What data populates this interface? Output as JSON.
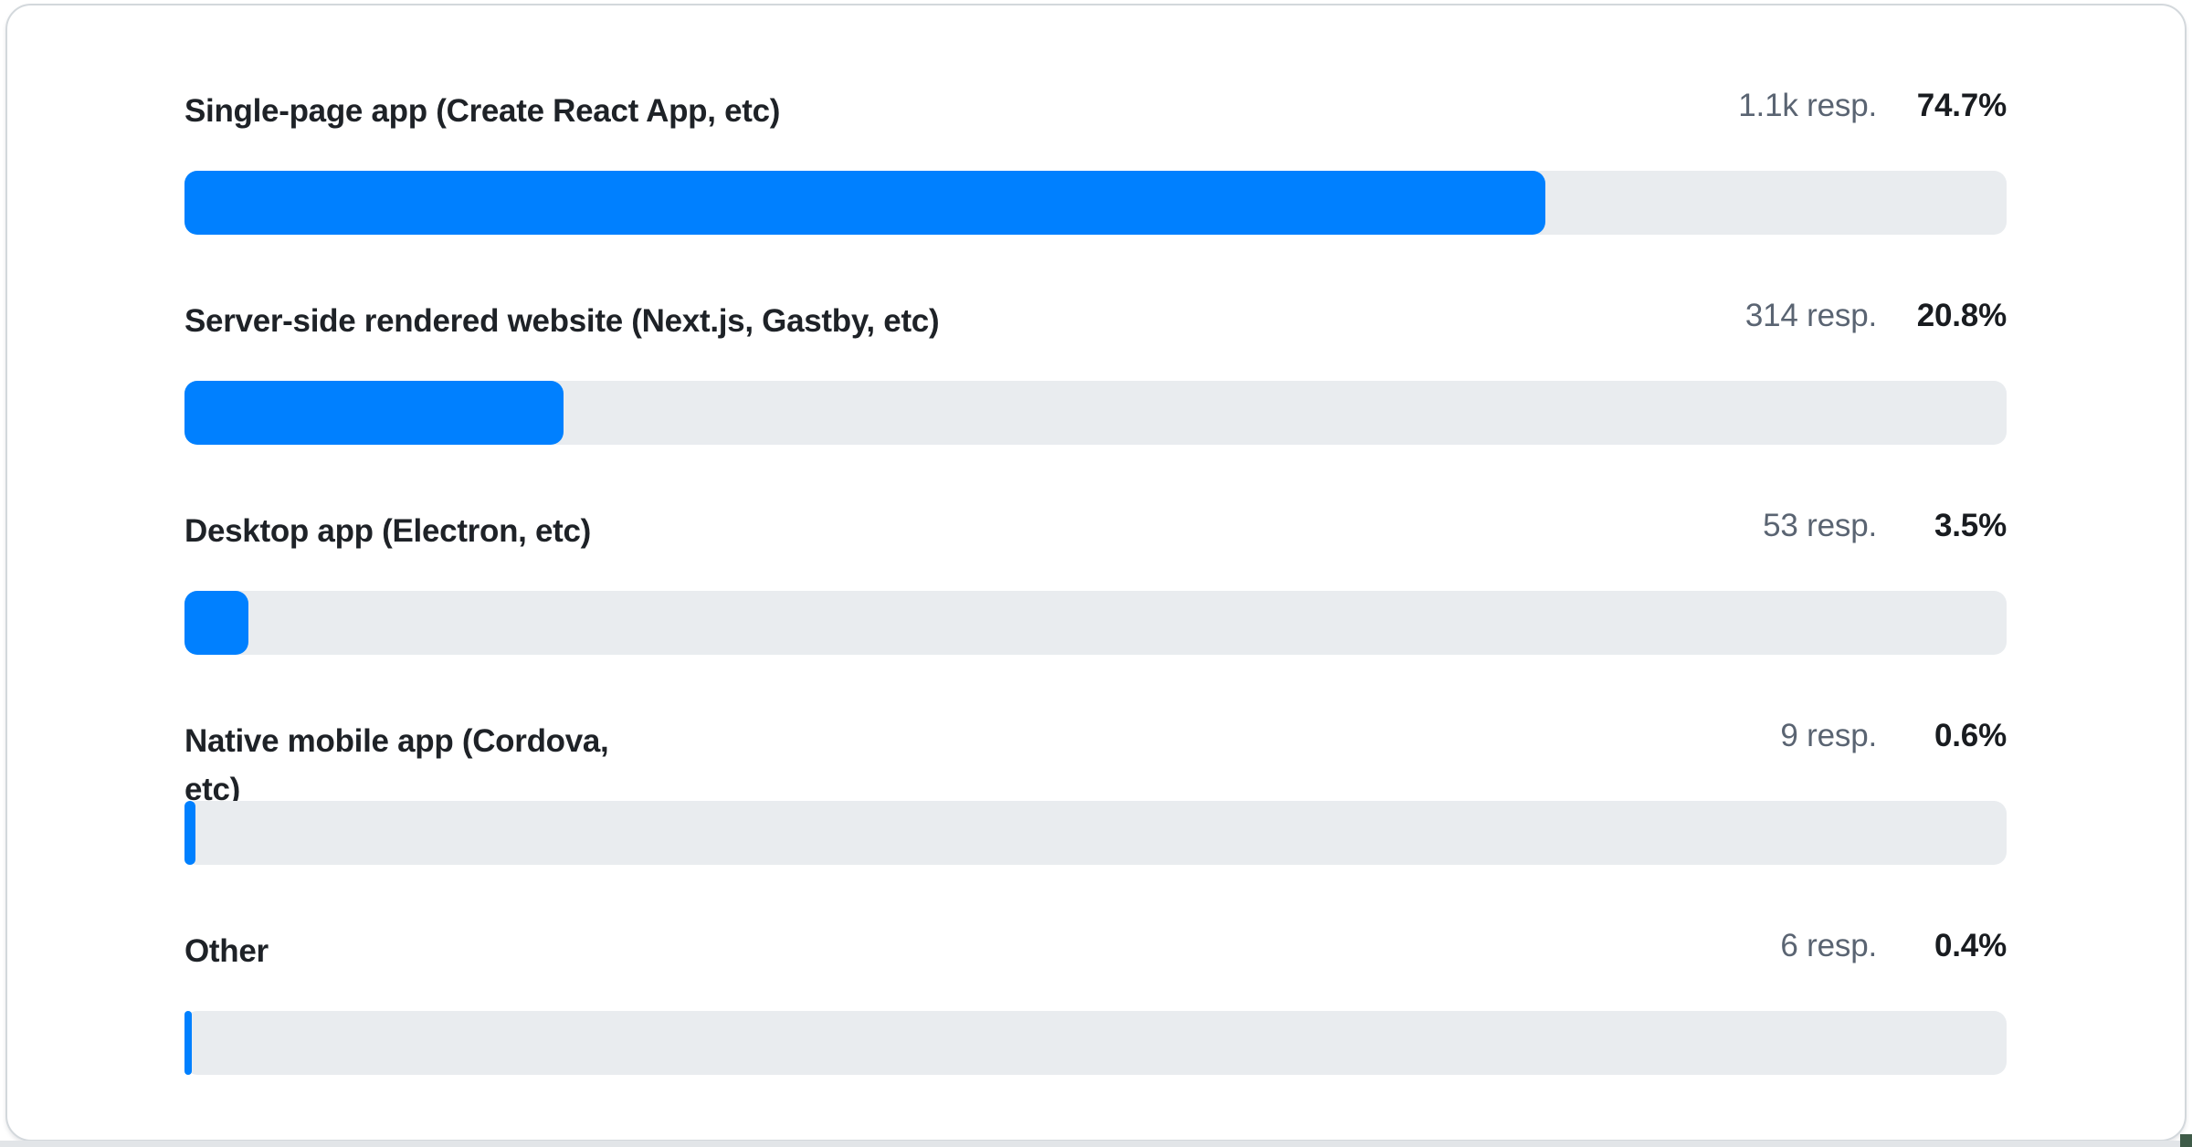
{
  "colors": {
    "bar_fill": "#0080ff",
    "bar_track": "#e9ecef",
    "label_text": "#1e2227",
    "resp_text": "#5a6472",
    "percent_text": "#191c20",
    "card_border": "#d3d8dc",
    "bottom_strip": "#e2e5e8",
    "corner_accent": "#3e5b48"
  },
  "survey": {
    "rows": [
      {
        "label": "Single-page app (Create React App, etc)",
        "responses": "1.1k resp.",
        "percent": "74.7%",
        "percent_value": 74.7
      },
      {
        "label": "Server-side rendered website (Next.js, Gastby, etc)",
        "responses": "314 resp.",
        "percent": "20.8%",
        "percent_value": 20.8
      },
      {
        "label": "Desktop app (Electron, etc)",
        "responses": "53 resp.",
        "percent": "3.5%",
        "percent_value": 3.5
      },
      {
        "label": "Native mobile app (Cordova,\netc)",
        "responses": "9 resp.",
        "percent": "0.6%",
        "percent_value": 0.6
      },
      {
        "label": "Other",
        "responses": "6 resp.",
        "percent": "0.4%",
        "percent_value": 0.4
      }
    ]
  },
  "chart_data": {
    "type": "bar",
    "orientation": "horizontal",
    "title": "",
    "categories": [
      "Single-page app (Create React App, etc)",
      "Server-side rendered website (Next.js, Gastby, etc)",
      "Desktop app (Electron, etc)",
      "Native mobile app (Cordova, etc)",
      "Other"
    ],
    "series": [
      {
        "name": "percent_of_responses",
        "values": [
          74.7,
          20.8,
          3.5,
          0.6,
          0.4
        ]
      },
      {
        "name": "response_counts_approx",
        "values": [
          1100,
          314,
          53,
          9,
          6
        ]
      }
    ],
    "value_labels": [
      "74.7%",
      "20.8%",
      "3.5%",
      "0.6%",
      "0.4%"
    ],
    "count_labels": [
      "1.1k resp.",
      "314 resp.",
      "53 resp.",
      "9 resp.",
      "6 resp."
    ],
    "xlim": [
      0,
      100
    ],
    "grid": false,
    "legend": false,
    "bar_color": "#0080ff",
    "track_color": "#e9ecef"
  }
}
